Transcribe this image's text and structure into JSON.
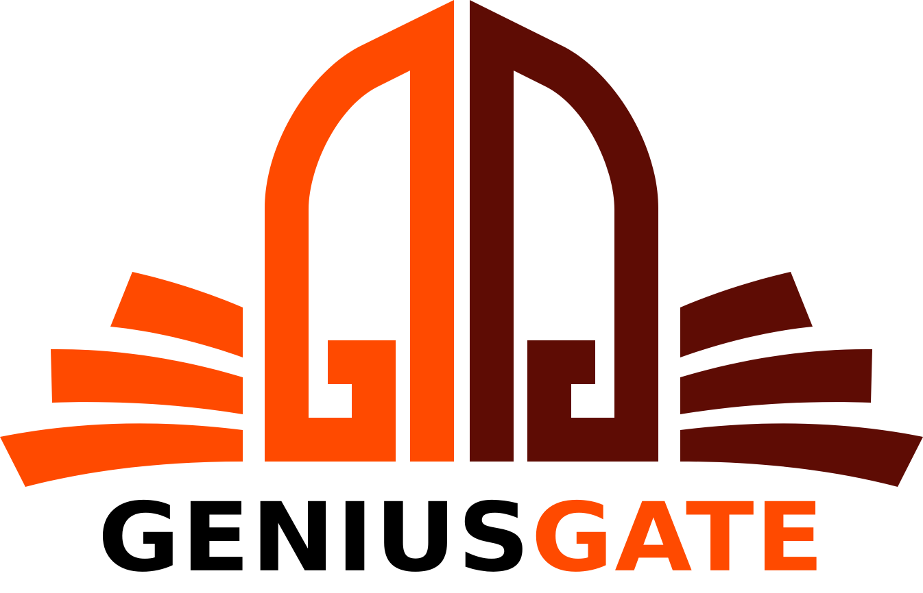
{
  "brand": {
    "name_part1": "GENIUS",
    "name_part2": "GATE"
  },
  "colors": {
    "orange": "#ff4a00",
    "maroon": "#5e0c04",
    "black": "#000000",
    "background": "#ffffff"
  },
  "icons": [
    "gate-left-icon",
    "gate-right-icon",
    "left-wing-icon",
    "right-wing-icon"
  ]
}
